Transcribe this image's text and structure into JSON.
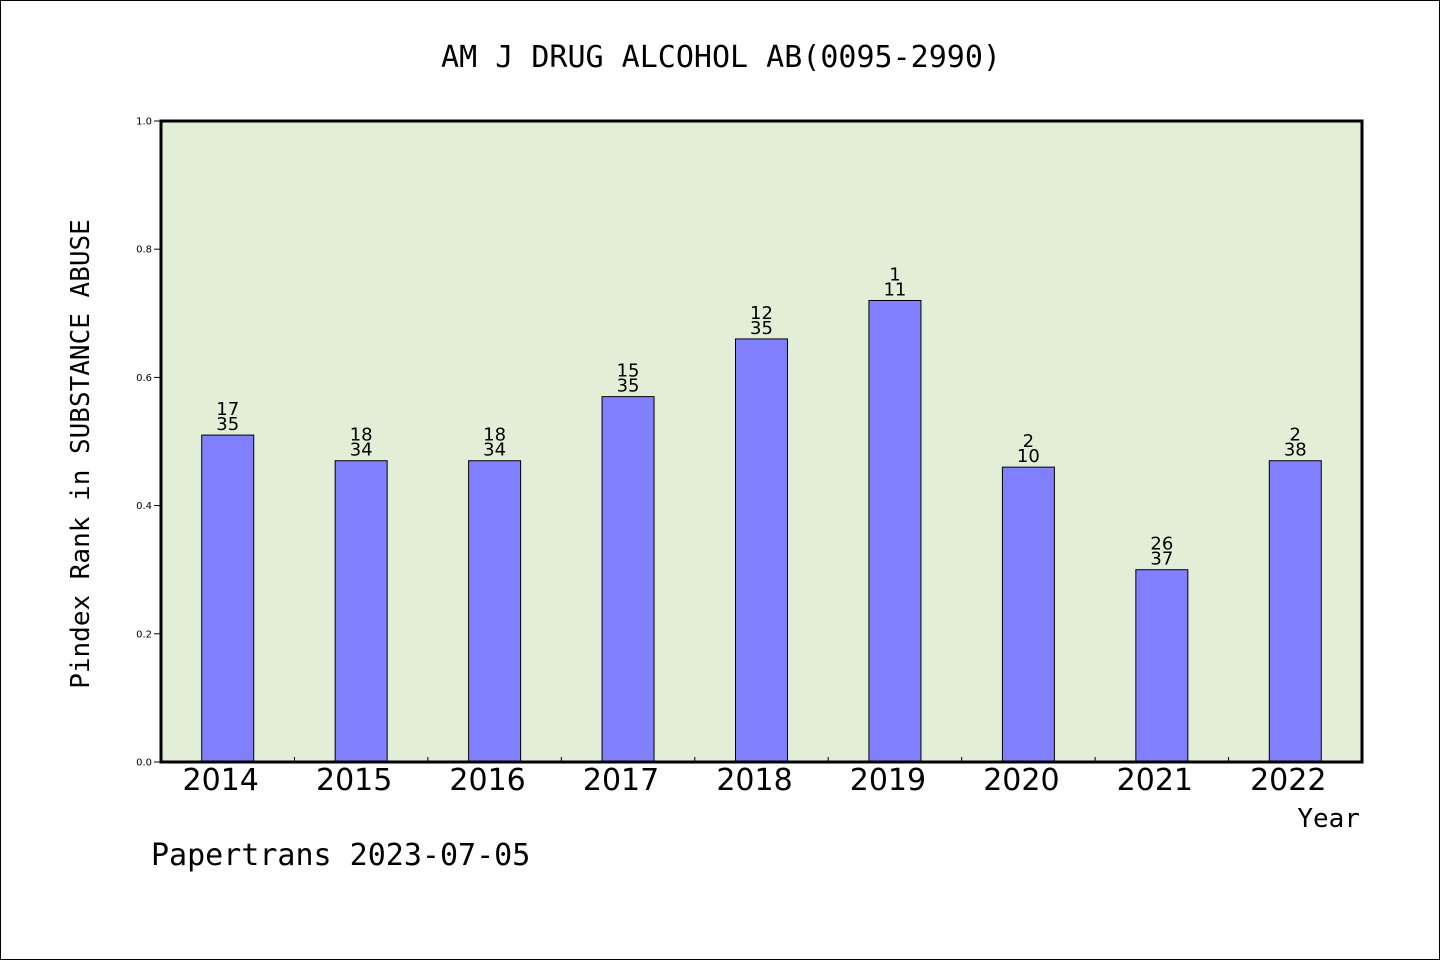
{
  "chart_data": {
    "type": "bar",
    "title": "AM J DRUG ALCOHOL AB(0095-2990)",
    "xlabel": "Year",
    "ylabel": "Pindex Rank in SUBSTANCE ABUSE",
    "ylim": [
      0,
      1.0
    ],
    "yticks": [
      "0.0",
      "0.2",
      "0.4",
      "0.6",
      "0.8",
      "1.0"
    ],
    "grid": false,
    "categories": [
      "2014",
      "2015",
      "2016",
      "2017",
      "2018",
      "2019",
      "2020",
      "2021",
      "2022"
    ],
    "values": [
      0.51,
      0.47,
      0.47,
      0.57,
      0.66,
      0.72,
      0.46,
      0.3,
      0.47
    ],
    "rank": [
      "17",
      "18",
      "18",
      "15",
      "12",
      "1",
      "2",
      "26",
      "2"
    ],
    "total": [
      "35",
      "34",
      "34",
      "35",
      "35",
      "11",
      "10",
      "37",
      "38"
    ],
    "colors": {
      "bar": "#8080ff",
      "plot_background": "#e2efd6",
      "axis": "#000000"
    }
  },
  "footer": {
    "credit": "Papertrans 2023-07-05"
  }
}
